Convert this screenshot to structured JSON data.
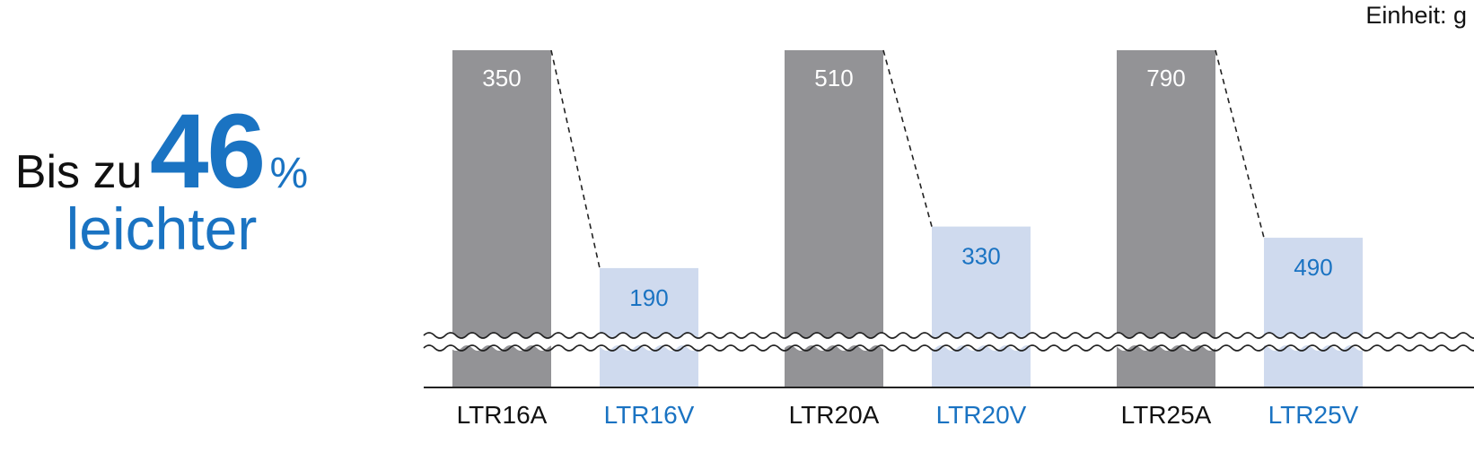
{
  "headline": {
    "prefix": "Bis zu",
    "number": "46",
    "percent": "%",
    "line2": "leichter"
  },
  "unit_label": "Einheit: g",
  "colors": {
    "standard": "#939396",
    "light": "#cfdaee",
    "accent": "#1a73c2",
    "label_dark": "#111111"
  },
  "chart_data": {
    "type": "bar",
    "categories": [
      "LTR16A",
      "LTR16V",
      "LTR20A",
      "LTR20V",
      "LTR25A",
      "LTR25V"
    ],
    "values": [
      350,
      190,
      510,
      330,
      790,
      490
    ],
    "kinds": [
      "standard",
      "light",
      "standard",
      "light",
      "standard",
      "light"
    ],
    "axis_break": true,
    "grid": false,
    "legend": "none"
  }
}
